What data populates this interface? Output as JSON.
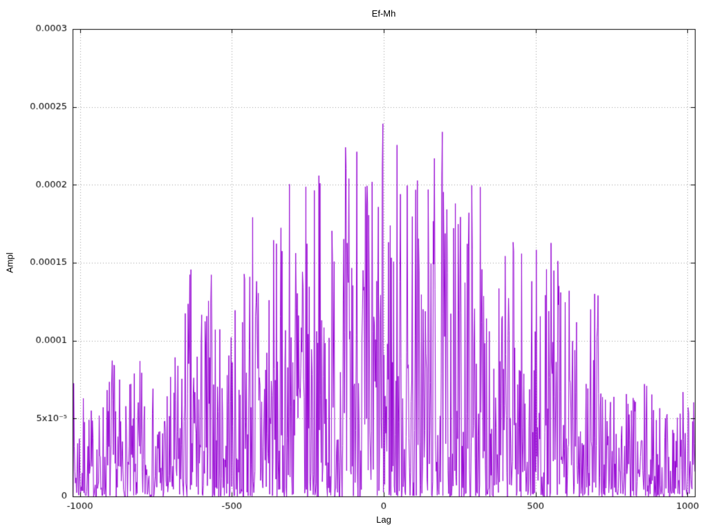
{
  "page": {
    "background": "#ffffff"
  },
  "chart_data": {
    "type": "line",
    "plot_style": "noisy-spike-series",
    "title": "Ef-Mh",
    "xlabel": "Lag",
    "ylabel": "Ampl",
    "xlim": [
      -1024,
      1024
    ],
    "ylim": [
      0,
      0.0003
    ],
    "x_ticks": [
      {
        "v": -1000,
        "label": "-1000"
      },
      {
        "v": -500,
        "label": "-500"
      },
      {
        "v": 0,
        "label": "0"
      },
      {
        "v": 500,
        "label": "500"
      },
      {
        "v": 1000,
        "label": "1000"
      }
    ],
    "y_ticks": [
      {
        "v": 0,
        "label": "0"
      },
      {
        "v": 5e-05,
        "label": "5x10⁻⁵"
      },
      {
        "v": 0.0001,
        "label": "0.0001"
      },
      {
        "v": 0.00015,
        "label": "0.00015"
      },
      {
        "v": 0.0002,
        "label": "0.0002"
      },
      {
        "v": 0.00025,
        "label": "0.00025"
      },
      {
        "v": 0.0003,
        "label": "0.0003"
      }
    ],
    "grid": {
      "enabled": true,
      "style": "dotted",
      "color": "#9a9a9a"
    },
    "line_color": "#9400d3",
    "border_color": "#000000",
    "n_points": 1100,
    "seed": 7,
    "noise_exponent": 2.4,
    "envelope": [
      [
        -1024,
        7.8e-05
      ],
      [
        -975,
        6.2e-05
      ],
      [
        -940,
        5.6e-05
      ],
      [
        -895,
        9.7e-05
      ],
      [
        -850,
        6.6e-05
      ],
      [
        -800,
        9e-05
      ],
      [
        -750,
        6.8e-05
      ],
      [
        -700,
        8.2e-05
      ],
      [
        -660,
        0.000113
      ],
      [
        -640,
        0.000157
      ],
      [
        -600,
        0.00013
      ],
      [
        -570,
        0.000157
      ],
      [
        -540,
        0.000112
      ],
      [
        -515,
        0.000145
      ],
      [
        -480,
        0.000115
      ],
      [
        -435,
        0.000225
      ],
      [
        -400,
        0.000162
      ],
      [
        -375,
        0.00021
      ],
      [
        -345,
        0.000158
      ],
      [
        -295,
        0.000265
      ],
      [
        -265,
        0.000192
      ],
      [
        -230,
        0.00023
      ],
      [
        -195,
        0.000205
      ],
      [
        -175,
        0.000192
      ],
      [
        -150,
        0.00024
      ],
      [
        -120,
        0.00023
      ],
      [
        -88,
        0.000282
      ],
      [
        -55,
        0.000228
      ],
      [
        -25,
        0.00022
      ],
      [
        0,
        0.000248
      ],
      [
        35,
        0.00025
      ],
      [
        65,
        0.000222
      ],
      [
        100,
        0.000237
      ],
      [
        130,
        0.00021
      ],
      [
        160,
        0.000235
      ],
      [
        200,
        0.000235
      ],
      [
        240,
        0.000192
      ],
      [
        270,
        0.000214
      ],
      [
        300,
        0.000228
      ],
      [
        335,
        0.000182
      ],
      [
        365,
        0.00017
      ],
      [
        400,
        0.000156
      ],
      [
        430,
        0.000193
      ],
      [
        465,
        0.000155
      ],
      [
        500,
        0.000162
      ],
      [
        530,
        0.000146
      ],
      [
        565,
        0.00018
      ],
      [
        600,
        0.000146
      ],
      [
        640,
        0.000122
      ],
      [
        680,
        0.000163
      ],
      [
        705,
        0.00013
      ],
      [
        735,
        8.2e-05
      ],
      [
        780,
        7.6e-05
      ],
      [
        820,
        6.6e-05
      ],
      [
        860,
        7.6e-05
      ],
      [
        900,
        6.2e-05
      ],
      [
        950,
        7.8e-05
      ],
      [
        1000,
        7e-05
      ],
      [
        1024,
        7.6e-05
      ]
    ]
  }
}
